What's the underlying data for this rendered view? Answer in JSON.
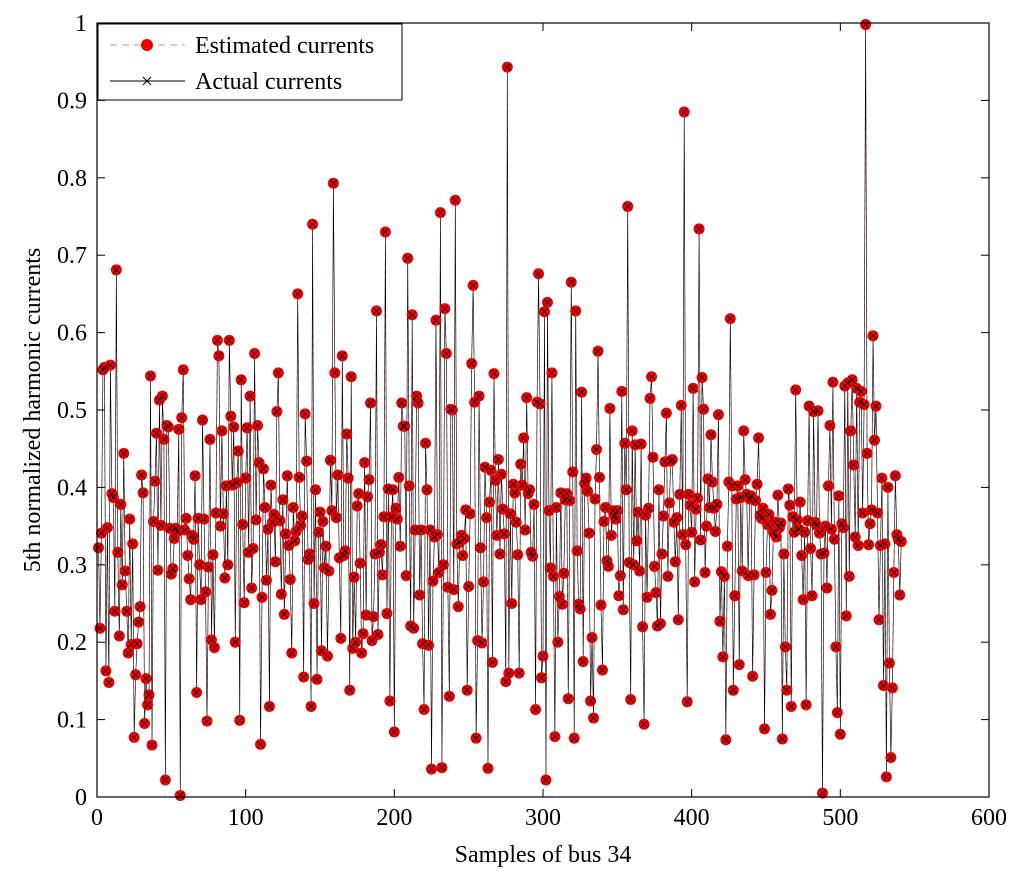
{
  "chart_data": {
    "type": "line",
    "xlabel": "Samples of bus 34",
    "ylabel": "5th normalized harmonic currents",
    "xlim": [
      0,
      600
    ],
    "ylim": [
      0,
      1
    ],
    "x_ticks": [
      "0",
      "100",
      "200",
      "300",
      "400",
      "500",
      "600"
    ],
    "y_ticks": [
      "0",
      "0.1",
      "0.2",
      "0.3",
      "0.4",
      "0.5",
      "0.6",
      "0.7",
      "0.8",
      "0.9",
      "1"
    ],
    "grid": false,
    "legend_position": "top-left",
    "x_sampling": "1 to 600 step 1",
    "series": [
      {
        "name": "Estimated currents",
        "line_style": "dashed",
        "line_color": "#ff9999",
        "marker": "filled-circle",
        "marker_color": "#ee0000",
        "values": [
          0.322,
          0.218,
          0.341,
          0.552,
          0.555,
          0.163,
          0.348,
          0.148,
          0.558,
          0.392,
          0.387,
          0.24,
          0.681,
          0.316,
          0.208,
          0.378,
          0.274,
          0.444,
          0.292,
          0.24,
          0.186,
          0.359,
          0.197,
          0.327,
          0.077,
          0.158,
          0.198,
          0.226,
          0.246,
          0.416,
          0.393,
          0.095,
          0.153,
          0.119,
          0.132,
          0.544,
          0.067,
          0.356,
          0.408,
          0.47,
          0.293,
          0.513,
          0.351,
          0.518,
          0.462,
          0.022,
          0.48,
          0.478,
          0.347,
          0.288,
          0.295,
          0.334,
          0.347,
          0.343,
          0.475,
          0.002,
          0.49,
          0.552,
          0.345,
          0.36,
          0.312,
          0.282,
          0.255,
          0.338,
          0.333,
          0.415,
          0.135,
          0.36,
          0.3,
          0.255,
          0.487,
          0.359,
          0.265,
          0.098,
          0.297,
          0.462,
          0.203,
          0.313,
          0.193,
          0.367,
          0.59,
          0.57,
          0.35,
          0.473,
          0.366,
          0.283,
          0.402,
          0.3,
          0.59,
          0.492,
          0.403,
          0.478,
          0.2,
          0.406,
          0.447,
          0.099,
          0.539,
          0.352,
          0.251,
          0.412,
          0.477,
          0.316,
          0.518,
          0.27,
          0.321,
          0.573,
          0.358,
          0.48,
          0.432,
          0.068,
          0.258,
          0.424,
          0.374,
          0.28,
          0.346,
          0.117,
          0.403,
          0.355,
          0.365,
          0.304,
          0.498,
          0.548,
          0.357,
          0.262,
          0.384,
          0.236,
          0.34,
          0.415,
          0.325,
          0.281,
          0.186,
          0.374,
          0.331,
          0.343,
          0.65,
          0.413,
          0.351,
          0.363,
          0.155,
          0.495,
          0.434,
          0.307,
          0.314,
          0.117,
          0.74,
          0.25,
          0.397,
          0.152,
          0.342,
          0.368,
          0.189,
          0.356,
          0.296,
          0.324,
          0.182,
          0.292,
          0.435,
          0.37,
          0.793,
          0.548,
          0.361,
          0.416,
          0.309,
          0.205,
          0.57,
          0.312,
          0.318,
          0.469,
          0.412,
          0.138,
          0.543,
          0.192,
          0.284,
          0.2,
          0.376,
          0.392,
          0.302,
          0.186,
          0.211,
          0.432,
          0.235,
          0.388,
          0.41,
          0.509,
          0.202,
          0.233,
          0.314,
          0.628,
          0.21,
          0.316,
          0.326,
          0.287,
          0.362,
          0.73,
          0.237,
          0.398,
          0.124,
          0.362,
          0.397,
          0.084,
          0.373,
          0.359,
          0.413,
          0.324,
          0.509,
          0.479,
          0.479,
          0.286,
          0.696,
          0.402,
          0.221,
          0.623,
          0.218,
          0.345,
          0.518,
          0.509,
          0.261,
          0.345,
          0.198,
          0.113,
          0.457,
          0.397,
          0.196,
          0.345,
          0.036,
          0.279,
          0.336,
          0.616,
          0.339,
          0.29,
          0.755,
          0.038,
          0.3,
          0.631,
          0.573,
          0.271,
          0.13,
          0.501,
          0.5,
          0.268,
          0.771,
          0.327,
          0.246,
          0.329,
          0.338,
          0.312,
          0.334,
          0.371,
          0.138,
          0.272,
          0.366,
          0.56,
          0.661,
          0.51,
          0.076,
          0.202,
          0.518,
          0.322,
          0.199,
          0.278,
          0.426,
          0.361,
          0.037,
          0.381,
          0.422,
          0.174,
          0.547,
          0.409,
          0.338,
          0.436,
          0.314,
          0.417,
          0.372,
          0.34,
          0.149,
          0.943,
          0.16,
          0.366,
          0.25,
          0.404,
          0.393,
          0.355,
          0.313,
          0.16,
          0.43,
          0.403,
          0.464,
          0.345,
          0.516,
          0.392,
          0.397,
          0.316,
          0.311,
          0.378,
          0.113,
          0.51,
          0.676,
          0.508,
          0.154,
          0.182,
          0.627,
          0.022,
          0.639,
          0.37,
          0.296,
          0.548,
          0.285,
          0.078,
          0.374,
          0.2,
          0.259,
          0.393,
          0.249,
          0.289,
          0.384,
          0.392,
          0.127,
          0.383,
          0.665,
          0.42,
          0.076,
          0.628,
          0.318,
          0.249,
          0.243,
          0.523,
          0.175,
          0.405,
          0.412,
          0.395,
          0.341,
          0.124,
          0.206,
          0.102,
          0.385,
          0.449,
          0.576,
          0.413,
          0.248,
          0.164,
          0.356,
          0.374,
          0.305,
          0.298,
          0.502,
          0.338,
          0.37,
          0.363,
          0.359,
          0.37,
          0.26,
          0.286,
          0.524,
          0.242,
          0.457,
          0.397,
          0.763,
          0.303,
          0.126,
          0.473,
          0.3,
          0.455,
          0.331,
          0.368,
          0.292,
          0.456,
          0.22,
          0.094,
          0.364,
          0.258,
          0.373,
          0.515,
          0.543,
          0.439,
          0.298,
          0.264,
          0.221,
          0.397,
          0.224,
          0.314,
          0.363,
          0.433,
          0.496,
          0.285,
          0.38,
          0.434,
          0.436,
          0.355,
          0.304,
          0.361,
          0.229,
          0.391,
          0.506,
          0.339,
          0.885,
          0.326,
          0.123,
          0.391,
          0.377,
          0.342,
          0.528,
          0.278,
          0.372,
          0.386,
          0.734,
          0.332,
          0.542,
          0.501,
          0.29,
          0.35,
          0.411,
          0.374,
          0.468,
          0.407,
          0.373,
          0.343,
          0.378,
          0.494,
          0.227,
          0.291,
          0.181,
          0.285,
          0.074,
          0.324,
          0.407,
          0.618,
          0.402,
          0.138,
          0.26,
          0.385,
          0.402,
          0.171,
          0.387,
          0.292,
          0.473,
          0.41,
          0.391,
          0.286,
          0.385,
          0.389,
          0.156,
          0.287,
          0.383,
          0.404,
          0.464,
          0.364,
          0.36,
          0.373,
          0.088,
          0.29,
          0.352,
          0.365,
          0.236,
          0.267,
          0.342,
          0.355,
          0.336,
          0.39,
          0.348,
          0.354,
          0.075,
          0.314,
          0.194,
          0.138,
          0.398,
          0.377,
          0.117,
          0.362,
          0.342,
          0.526,
          0.358,
          0.346,
          0.381,
          0.312,
          0.255,
          0.342,
          0.119,
          0.357,
          0.505,
          0.321,
          0.26,
          0.498,
          0.355,
          0.351,
          0.499,
          0.341,
          0.314,
          0.005,
          0.315,
          0.35,
          0.27,
          0.402,
          0.48,
          0.346,
          0.536,
          0.333,
          0.194,
          0.109,
          0.389,
          0.081,
          0.353,
          0.348,
          0.531,
          0.234,
          0.535,
          0.285,
          0.473,
          0.539,
          0.429,
          0.336,
          0.528,
          0.325,
          0.51,
          0.524,
          0.367,
          0.507,
          0.998,
          0.444,
          0.326,
          0.353,
          0.371,
          0.596,
          0.461,
          0.505,
          0.367,
          0.229,
          0.325,
          0.412,
          0.144,
          0.327,
          0.026,
          0.4,
          0.173,
          0.051,
          0.141,
          0.29,
          0.415,
          0.339,
          0.333,
          0.261,
          0.33
        ]
      },
      {
        "name": "Actual currents",
        "line_style": "solid",
        "line_color": "#000000",
        "marker": "x",
        "marker_color": "#000000",
        "values": [
          0.322,
          0.218,
          0.341,
          0.552,
          0.555,
          0.163,
          0.348,
          0.148,
          0.558,
          0.392,
          0.387,
          0.24,
          0.681,
          0.316,
          0.208,
          0.378,
          0.274,
          0.444,
          0.292,
          0.24,
          0.186,
          0.359,
          0.197,
          0.327,
          0.077,
          0.158,
          0.198,
          0.226,
          0.246,
          0.416,
          0.393,
          0.095,
          0.153,
          0.119,
          0.132,
          0.544,
          0.067,
          0.356,
          0.408,
          0.47,
          0.293,
          0.513,
          0.351,
          0.518,
          0.462,
          0.022,
          0.48,
          0.478,
          0.347,
          0.288,
          0.295,
          0.334,
          0.347,
          0.343,
          0.475,
          0.002,
          0.49,
          0.552,
          0.345,
          0.36,
          0.312,
          0.282,
          0.255,
          0.338,
          0.333,
          0.415,
          0.135,
          0.36,
          0.3,
          0.255,
          0.487,
          0.359,
          0.265,
          0.098,
          0.297,
          0.462,
          0.203,
          0.313,
          0.193,
          0.367,
          0.59,
          0.57,
          0.35,
          0.473,
          0.366,
          0.283,
          0.402,
          0.3,
          0.59,
          0.492,
          0.403,
          0.478,
          0.2,
          0.406,
          0.447,
          0.099,
          0.539,
          0.352,
          0.251,
          0.412,
          0.477,
          0.316,
          0.518,
          0.27,
          0.321,
          0.573,
          0.358,
          0.48,
          0.432,
          0.068,
          0.258,
          0.424,
          0.374,
          0.28,
          0.346,
          0.117,
          0.403,
          0.355,
          0.365,
          0.304,
          0.498,
          0.548,
          0.357,
          0.262,
          0.384,
          0.236,
          0.34,
          0.415,
          0.325,
          0.281,
          0.186,
          0.374,
          0.331,
          0.343,
          0.65,
          0.413,
          0.351,
          0.363,
          0.155,
          0.495,
          0.434,
          0.307,
          0.314,
          0.117,
          0.74,
          0.25,
          0.397,
          0.152,
          0.342,
          0.368,
          0.189,
          0.356,
          0.296,
          0.324,
          0.182,
          0.292,
          0.435,
          0.37,
          0.793,
          0.548,
          0.361,
          0.416,
          0.309,
          0.205,
          0.57,
          0.312,
          0.318,
          0.469,
          0.412,
          0.138,
          0.543,
          0.192,
          0.284,
          0.2,
          0.376,
          0.392,
          0.302,
          0.186,
          0.211,
          0.432,
          0.235,
          0.388,
          0.41,
          0.509,
          0.202,
          0.233,
          0.314,
          0.628,
          0.21,
          0.316,
          0.326,
          0.287,
          0.362,
          0.73,
          0.237,
          0.398,
          0.124,
          0.362,
          0.397,
          0.084,
          0.373,
          0.359,
          0.413,
          0.324,
          0.509,
          0.479,
          0.479,
          0.286,
          0.696,
          0.402,
          0.221,
          0.623,
          0.218,
          0.345,
          0.518,
          0.509,
          0.261,
          0.345,
          0.198,
          0.113,
          0.457,
          0.397,
          0.196,
          0.345,
          0.036,
          0.279,
          0.336,
          0.616,
          0.339,
          0.29,
          0.755,
          0.038,
          0.3,
          0.631,
          0.573,
          0.271,
          0.13,
          0.501,
          0.5,
          0.268,
          0.771,
          0.327,
          0.246,
          0.329,
          0.338,
          0.312,
          0.334,
          0.371,
          0.138,
          0.272,
          0.366,
          0.56,
          0.661,
          0.51,
          0.076,
          0.202,
          0.518,
          0.322,
          0.199,
          0.278,
          0.426,
          0.361,
          0.037,
          0.381,
          0.422,
          0.174,
          0.547,
          0.409,
          0.338,
          0.436,
          0.314,
          0.417,
          0.372,
          0.34,
          0.149,
          0.943,
          0.16,
          0.366,
          0.25,
          0.404,
          0.393,
          0.355,
          0.313,
          0.16,
          0.43,
          0.403,
          0.464,
          0.345,
          0.516,
          0.392,
          0.397,
          0.316,
          0.311,
          0.378,
          0.113,
          0.51,
          0.676,
          0.508,
          0.154,
          0.182,
          0.627,
          0.022,
          0.639,
          0.37,
          0.296,
          0.548,
          0.285,
          0.078,
          0.374,
          0.2,
          0.259,
          0.393,
          0.249,
          0.289,
          0.384,
          0.392,
          0.127,
          0.383,
          0.665,
          0.42,
          0.076,
          0.628,
          0.318,
          0.249,
          0.243,
          0.523,
          0.175,
          0.405,
          0.412,
          0.395,
          0.341,
          0.124,
          0.206,
          0.102,
          0.385,
          0.449,
          0.576,
          0.413,
          0.248,
          0.164,
          0.356,
          0.374,
          0.305,
          0.298,
          0.502,
          0.338,
          0.37,
          0.363,
          0.359,
          0.37,
          0.26,
          0.286,
          0.524,
          0.242,
          0.457,
          0.397,
          0.763,
          0.303,
          0.126,
          0.473,
          0.3,
          0.455,
          0.331,
          0.368,
          0.292,
          0.456,
          0.22,
          0.094,
          0.364,
          0.258,
          0.373,
          0.515,
          0.543,
          0.439,
          0.298,
          0.264,
          0.221,
          0.397,
          0.224,
          0.314,
          0.363,
          0.433,
          0.496,
          0.285,
          0.38,
          0.434,
          0.436,
          0.355,
          0.304,
          0.361,
          0.229,
          0.391,
          0.506,
          0.339,
          0.885,
          0.326,
          0.123,
          0.391,
          0.377,
          0.342,
          0.528,
          0.278,
          0.372,
          0.386,
          0.734,
          0.332,
          0.542,
          0.501,
          0.29,
          0.35,
          0.411,
          0.374,
          0.468,
          0.407,
          0.373,
          0.343,
          0.378,
          0.494,
          0.227,
          0.291,
          0.181,
          0.285,
          0.074,
          0.324,
          0.407,
          0.618,
          0.402,
          0.138,
          0.26,
          0.385,
          0.402,
          0.171,
          0.387,
          0.292,
          0.473,
          0.41,
          0.391,
          0.286,
          0.385,
          0.389,
          0.156,
          0.287,
          0.383,
          0.404,
          0.464,
          0.364,
          0.36,
          0.373,
          0.088,
          0.29,
          0.352,
          0.365,
          0.236,
          0.267,
          0.342,
          0.355,
          0.336,
          0.39,
          0.348,
          0.354,
          0.075,
          0.314,
          0.194,
          0.138,
          0.398,
          0.377,
          0.117,
          0.362,
          0.342,
          0.526,
          0.358,
          0.346,
          0.381,
          0.312,
          0.255,
          0.342,
          0.119,
          0.357,
          0.505,
          0.321,
          0.26,
          0.498,
          0.355,
          0.351,
          0.499,
          0.341,
          0.314,
          0.005,
          0.315,
          0.35,
          0.27,
          0.402,
          0.48,
          0.346,
          0.536,
          0.333,
          0.194,
          0.109,
          0.389,
          0.081,
          0.353,
          0.348,
          0.531,
          0.234,
          0.535,
          0.285,
          0.473,
          0.539,
          0.429,
          0.336,
          0.528,
          0.325,
          0.51,
          0.524,
          0.367,
          0.507,
          0.998,
          0.444,
          0.326,
          0.353,
          0.371,
          0.596,
          0.461,
          0.505,
          0.367,
          0.229,
          0.325,
          0.412,
          0.144,
          0.327,
          0.026,
          0.4,
          0.173,
          0.051,
          0.141,
          0.29,
          0.415,
          0.339,
          0.333,
          0.261,
          0.33
        ]
      }
    ]
  }
}
